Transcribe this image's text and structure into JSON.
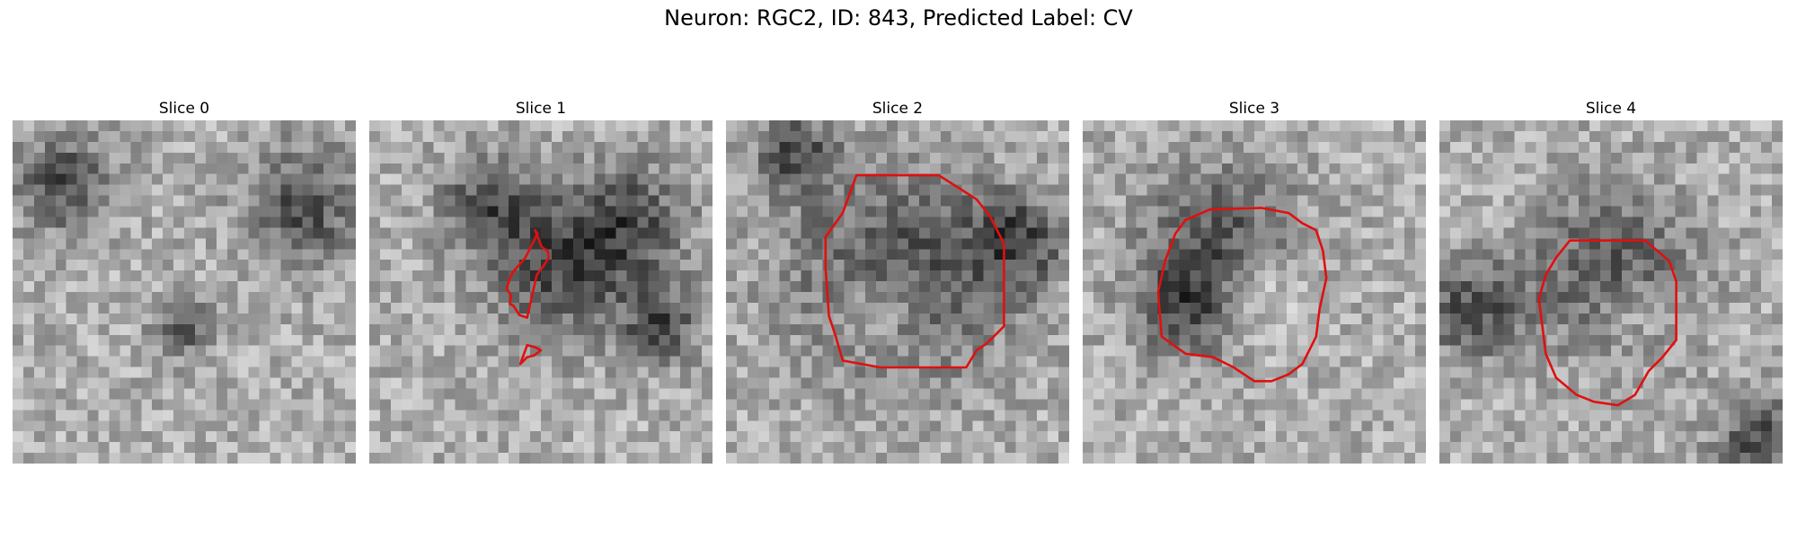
{
  "figure": {
    "title": "Neuron: RGC2, ID: 843, Predicted Label: CV",
    "contour_color": "#e01010",
    "colormap": "grayscale",
    "panels": [
      {
        "title": "Slice 0",
        "contours": []
      },
      {
        "title": "Slice 1",
        "contours": [
          [
            [
              0.483,
              0.32
            ],
            [
              0.503,
              0.37
            ],
            [
              0.52,
              0.38
            ],
            [
              0.523,
              0.4
            ],
            [
              0.507,
              0.425
            ],
            [
              0.488,
              0.45
            ],
            [
              0.46,
              0.575
            ],
            [
              0.437,
              0.567
            ],
            [
              0.42,
              0.54
            ],
            [
              0.41,
              0.535
            ],
            [
              0.413,
              0.51
            ],
            [
              0.4,
              0.49
            ],
            [
              0.41,
              0.46
            ],
            [
              0.42,
              0.44
            ],
            [
              0.455,
              0.4
            ],
            [
              0.49,
              0.33
            ]
          ],
          [
            [
              0.44,
              0.71
            ],
            [
              0.46,
              0.655
            ],
            [
              0.48,
              0.66
            ],
            [
              0.5,
              0.67
            ],
            [
              0.48,
              0.685
            ],
            [
              0.46,
              0.69
            ]
          ]
        ]
      },
      {
        "title": "Slice 2",
        "contours": [
          [
            [
              0.38,
              0.16
            ],
            [
              0.62,
              0.16
            ],
            [
              0.73,
              0.23
            ],
            [
              0.77,
              0.28
            ],
            [
              0.81,
              0.36
            ],
            [
              0.81,
              0.6
            ],
            [
              0.76,
              0.65
            ],
            [
              0.73,
              0.67
            ],
            [
              0.7,
              0.72
            ],
            [
              0.61,
              0.72
            ],
            [
              0.45,
              0.72
            ],
            [
              0.34,
              0.7
            ],
            [
              0.32,
              0.63
            ],
            [
              0.3,
              0.57
            ],
            [
              0.29,
              0.43
            ],
            [
              0.29,
              0.34
            ],
            [
              0.34,
              0.27
            ]
          ]
        ]
      },
      {
        "title": "Slice 3",
        "contours": [
          [
            [
              0.37,
              0.26
            ],
            [
              0.52,
              0.255
            ],
            [
              0.6,
              0.27
            ],
            [
              0.64,
              0.3
            ],
            [
              0.68,
              0.32
            ],
            [
              0.7,
              0.38
            ],
            [
              0.71,
              0.46
            ],
            [
              0.69,
              0.55
            ],
            [
              0.68,
              0.63
            ],
            [
              0.64,
              0.71
            ],
            [
              0.6,
              0.74
            ],
            [
              0.55,
              0.76
            ],
            [
              0.5,
              0.76
            ],
            [
              0.44,
              0.72
            ],
            [
              0.38,
              0.69
            ],
            [
              0.3,
              0.68
            ],
            [
              0.23,
              0.63
            ],
            [
              0.22,
              0.5
            ],
            [
              0.24,
              0.41
            ],
            [
              0.27,
              0.33
            ],
            [
              0.3,
              0.29
            ]
          ]
        ]
      },
      {
        "title": "Slice 4",
        "contours": [
          [
            [
              0.38,
              0.35
            ],
            [
              0.6,
              0.35
            ],
            [
              0.67,
              0.41
            ],
            [
              0.69,
              0.47
            ],
            [
              0.69,
              0.64
            ],
            [
              0.65,
              0.69
            ],
            [
              0.61,
              0.73
            ],
            [
              0.57,
              0.8
            ],
            [
              0.52,
              0.83
            ],
            [
              0.45,
              0.82
            ],
            [
              0.4,
              0.8
            ],
            [
              0.34,
              0.75
            ],
            [
              0.31,
              0.68
            ],
            [
              0.3,
              0.6
            ],
            [
              0.29,
              0.52
            ],
            [
              0.31,
              0.45
            ],
            [
              0.34,
              0.4
            ]
          ]
        ]
      }
    ]
  }
}
